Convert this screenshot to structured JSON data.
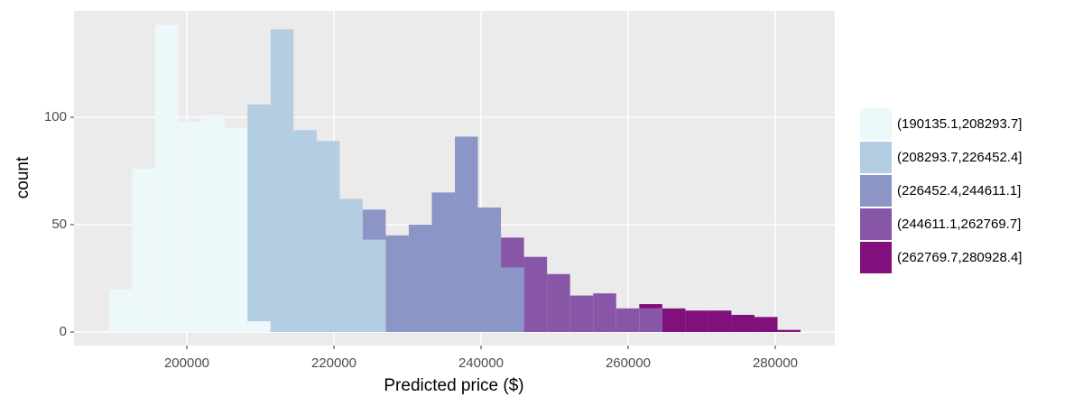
{
  "chart_data": {
    "type": "histogram",
    "xlabel": "Predicted price ($)",
    "ylabel": "count",
    "bins": [
      189450,
      192583,
      195716,
      198849,
      201982,
      205115,
      208248,
      211381,
      214514,
      217647,
      220780,
      223913,
      227046,
      230179,
      233312,
      236445,
      239578,
      242711,
      245844,
      248977,
      252110,
      255243,
      258376,
      261509,
      264642,
      267775,
      270908,
      274041,
      277174,
      280307,
      283440
    ],
    "series": [
      {
        "name": "(190135.1,208293.7]",
        "color": "#edf8fb",
        "values": [
          20,
          76,
          143,
          98,
          101,
          95,
          5,
          0,
          0,
          0,
          0,
          0,
          0,
          0,
          0,
          0,
          0,
          0,
          0,
          0,
          0,
          0,
          0,
          0,
          0,
          0,
          0,
          0,
          0,
          0
        ]
      },
      {
        "name": "(208293.7,226452.4]",
        "color": "#b3cde3",
        "values": [
          0,
          0,
          0,
          0,
          0,
          0,
          101,
          141,
          94,
          89,
          62,
          43,
          0,
          0,
          0,
          0,
          0,
          0,
          0,
          0,
          0,
          0,
          0,
          0,
          0,
          0,
          0,
          0,
          0,
          0
        ]
      },
      {
        "name": "(226452.4,244611.1]",
        "color": "#8c96c6",
        "values": [
          0,
          0,
          0,
          0,
          0,
          0,
          0,
          0,
          0,
          0,
          0,
          14,
          45,
          50,
          65,
          91,
          58,
          30,
          0,
          0,
          0,
          0,
          0,
          0,
          0,
          0,
          0,
          0,
          0,
          0
        ]
      },
      {
        "name": "(244611.1,262769.7]",
        "color": "#8856a7",
        "values": [
          0,
          0,
          0,
          0,
          0,
          0,
          0,
          0,
          0,
          0,
          0,
          0,
          0,
          0,
          0,
          0,
          0,
          14,
          35,
          27,
          17,
          18,
          11,
          11,
          0,
          0,
          0,
          0,
          0,
          0
        ]
      },
      {
        "name": "(262769.7,280928.4]",
        "color": "#810f7c",
        "values": [
          0,
          0,
          0,
          0,
          0,
          0,
          0,
          0,
          0,
          0,
          0,
          0,
          0,
          0,
          0,
          0,
          0,
          0,
          0,
          0,
          0,
          0,
          0,
          2,
          11,
          10,
          10,
          8,
          7,
          1
        ]
      }
    ],
    "xlim": [
      184663,
      288098
    ],
    "ylim": [
      -6.3,
      149.6
    ],
    "xticks": [
      200000,
      220000,
      240000,
      260000,
      280000
    ],
    "yticks": [
      0,
      50,
      100
    ],
    "grid": true
  }
}
